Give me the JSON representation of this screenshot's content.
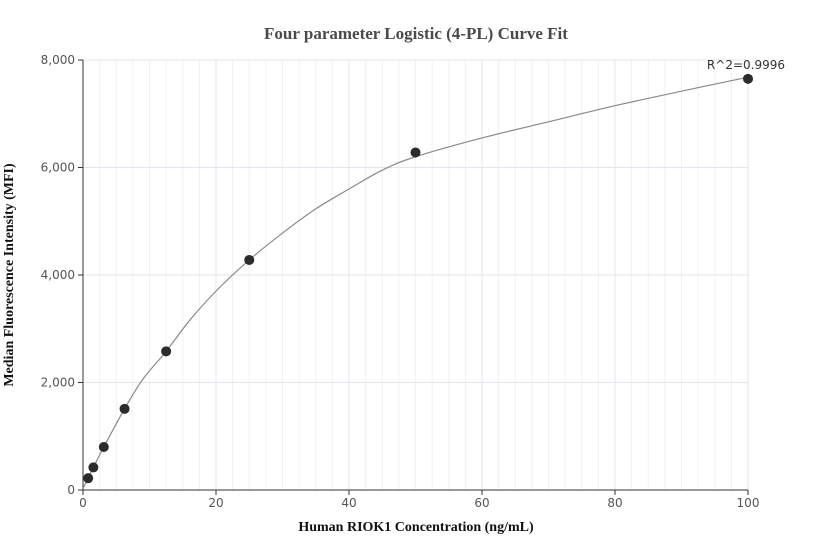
{
  "chart_data": {
    "type": "scatter",
    "title": "Four parameter Logistic (4-PL) Curve Fit",
    "xlabel": "Human RIOK1 Concentration (ng/mL)",
    "ylabel": "Median Fluorescence Intensity (MFI)",
    "xlim": [
      0,
      100
    ],
    "ylim": [
      0,
      8000
    ],
    "x_ticks": [
      "0",
      "20",
      "40",
      "60",
      "80",
      "100"
    ],
    "y_ticks": [
      "0",
      "2,000",
      "4,000",
      "6,000",
      "8,000"
    ],
    "grid": true,
    "annotation": "R^2=0.9996",
    "points": [
      {
        "x": 0.78,
        "y": 220
      },
      {
        "x": 1.56,
        "y": 420
      },
      {
        "x": 3.13,
        "y": 800
      },
      {
        "x": 6.25,
        "y": 1510
      },
      {
        "x": 12.5,
        "y": 2580
      },
      {
        "x": 25,
        "y": 4280
      },
      {
        "x": 50,
        "y": 6280
      },
      {
        "x": 100,
        "y": 7650
      }
    ],
    "fit_curve": {
      "type": "4-PL",
      "points": [
        [
          0,
          30
        ],
        [
          0.78,
          220
        ],
        [
          1.56,
          420
        ],
        [
          3.13,
          800
        ],
        [
          6.25,
          1510
        ],
        [
          9,
          2060
        ],
        [
          12.5,
          2580
        ],
        [
          16,
          3150
        ],
        [
          20,
          3700
        ],
        [
          25,
          4280
        ],
        [
          30,
          4780
        ],
        [
          35,
          5230
        ],
        [
          40,
          5600
        ],
        [
          45,
          5950
        ],
        [
          50,
          6200
        ],
        [
          60,
          6550
        ],
        [
          70,
          6850
        ],
        [
          80,
          7150
        ],
        [
          90,
          7420
        ],
        [
          100,
          7680
        ]
      ]
    },
    "colors": {
      "points": "#2b2b2b",
      "curve": "#8a8a8a",
      "grid": "#e4e4ee",
      "axis": "#333333"
    }
  }
}
